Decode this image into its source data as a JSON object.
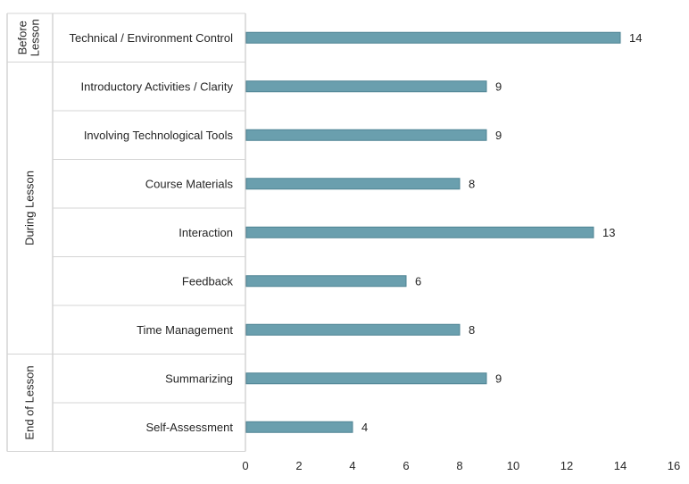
{
  "chart_data": {
    "type": "bar",
    "orientation": "horizontal",
    "groups": [
      {
        "name": "Before Lesson",
        "categories": [
          "Technical / Environment Control"
        ]
      },
      {
        "name": "During Lesson",
        "categories": [
          "Introductory Activities / Clarity",
          "Involving Technological Tools",
          "Course Materials",
          "Interaction",
          "Feedback",
          "Time Management"
        ]
      },
      {
        "name": "End of Lesson",
        "categories": [
          "Summarizing",
          "Self-Assessment"
        ]
      }
    ],
    "categories": [
      "Technical / Environment Control",
      "Introductory Activities / Clarity",
      "Involving Technological Tools",
      "Course Materials",
      "Interaction",
      "Feedback",
      "Time Management",
      "Summarizing",
      "Self-Assessment"
    ],
    "values": [
      14,
      9,
      9,
      8,
      13,
      6,
      8,
      9,
      4
    ],
    "xlim": [
      0,
      16
    ],
    "xticks": [
      "0",
      "2",
      "4",
      "6",
      "8",
      "10",
      "12",
      "14",
      "16"
    ],
    "title": "",
    "xlabel": "",
    "ylabel": "",
    "grid": false,
    "legend": "none",
    "bar_color": "#6a9fae",
    "bar_edge_color": "#4e8393"
  }
}
